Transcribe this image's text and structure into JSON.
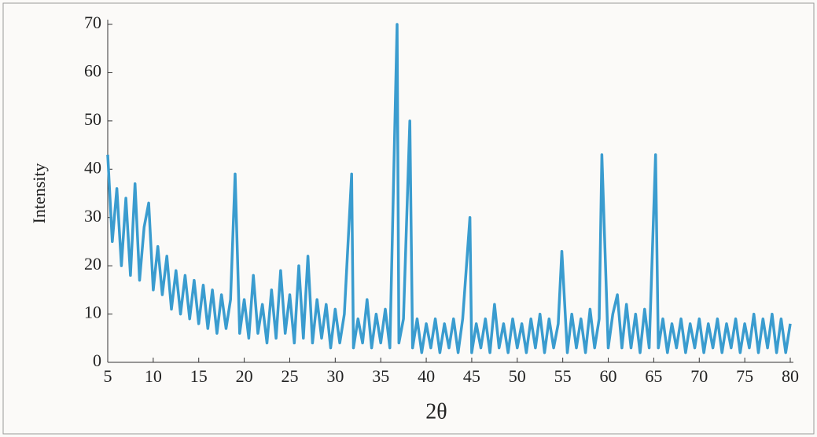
{
  "chart_data": {
    "type": "line",
    "x_label": "2θ",
    "y_label": "Intensity",
    "x": [
      5,
      5.5,
      6,
      6.5,
      7,
      7.5,
      8,
      8.5,
      9,
      9.5,
      10,
      10.5,
      11,
      11.5,
      12,
      12.5,
      13,
      13.5,
      14,
      14.5,
      15,
      15.5,
      16,
      16.5,
      17,
      17.5,
      18,
      18.5,
      19,
      19.5,
      20,
      20.5,
      21,
      21.5,
      22,
      22.5,
      23,
      23.5,
      24,
      24.5,
      25,
      25.5,
      26,
      26.5,
      27,
      27.5,
      28,
      28.5,
      29,
      29.5,
      30,
      30.5,
      31,
      31.8,
      32,
      32.5,
      33,
      33.5,
      34,
      34.5,
      35,
      35.5,
      36,
      36.8,
      37,
      37.5,
      38.2,
      38.5,
      39,
      39.5,
      40,
      40.5,
      41,
      41.5,
      42,
      42.5,
      43,
      43.5,
      44,
      44.8,
      45,
      45.5,
      46,
      46.5,
      47,
      47.5,
      48,
      48.5,
      49,
      49.5,
      50,
      50.5,
      51,
      51.5,
      52,
      52.5,
      53,
      53.5,
      54,
      54.5,
      54.9,
      55.5,
      56,
      56.5,
      57,
      57.5,
      58,
      58.5,
      59,
      59.3,
      60,
      60.5,
      61,
      61.5,
      62,
      62.5,
      63,
      63.5,
      64,
      64.5,
      65.2,
      65.5,
      66,
      66.5,
      67,
      67.5,
      68,
      68.5,
      69,
      69.5,
      70,
      70.5,
      71,
      71.5,
      72,
      72.5,
      73,
      73.5,
      74,
      74.5,
      75,
      75.5,
      76,
      76.5,
      77,
      77.5,
      78,
      78.5,
      79,
      79.5,
      80
    ],
    "series": [
      {
        "name": "Intensity",
        "color": "#3a9ccf",
        "values": [
          43,
          25,
          36,
          20,
          34,
          18,
          37,
          17,
          28,
          33,
          15,
          24,
          14,
          22,
          11,
          19,
          10,
          18,
          9,
          17,
          8,
          16,
          7,
          15,
          6,
          14,
          7,
          13,
          39,
          6,
          13,
          5,
          18,
          6,
          12,
          4,
          15,
          5,
          19,
          6,
          14,
          4,
          20,
          5,
          22,
          4,
          13,
          5,
          12,
          3,
          11,
          4,
          10,
          39,
          3,
          9,
          4,
          13,
          3,
          10,
          4,
          11,
          3,
          70,
          4,
          9,
          50,
          3,
          9,
          2,
          8,
          3,
          9,
          2,
          8,
          3,
          9,
          2,
          9,
          30,
          2,
          8,
          3,
          9,
          2,
          12,
          3,
          8,
          2,
          9,
          3,
          8,
          2,
          9,
          3,
          10,
          2,
          9,
          3,
          8,
          23,
          2,
          10,
          3,
          9,
          2,
          11,
          3,
          9,
          43,
          3,
          10,
          14,
          3,
          12,
          3,
          10,
          2,
          11,
          3,
          43,
          3,
          9,
          2,
          8,
          3,
          9,
          2,
          8,
          3,
          9,
          2,
          8,
          3,
          9,
          2,
          8,
          3,
          9,
          2,
          8,
          3,
          10,
          2,
          9,
          3,
          10,
          2,
          9,
          2,
          8
        ]
      }
    ],
    "xlim": [
      5,
      80
    ],
    "ylim": [
      0,
      70
    ],
    "xticks": [
      5,
      10,
      15,
      20,
      25,
      30,
      35,
      40,
      45,
      50,
      55,
      60,
      65,
      70,
      75,
      80
    ],
    "yticks": [
      0,
      10,
      20,
      30,
      40,
      50,
      60,
      70
    ]
  }
}
